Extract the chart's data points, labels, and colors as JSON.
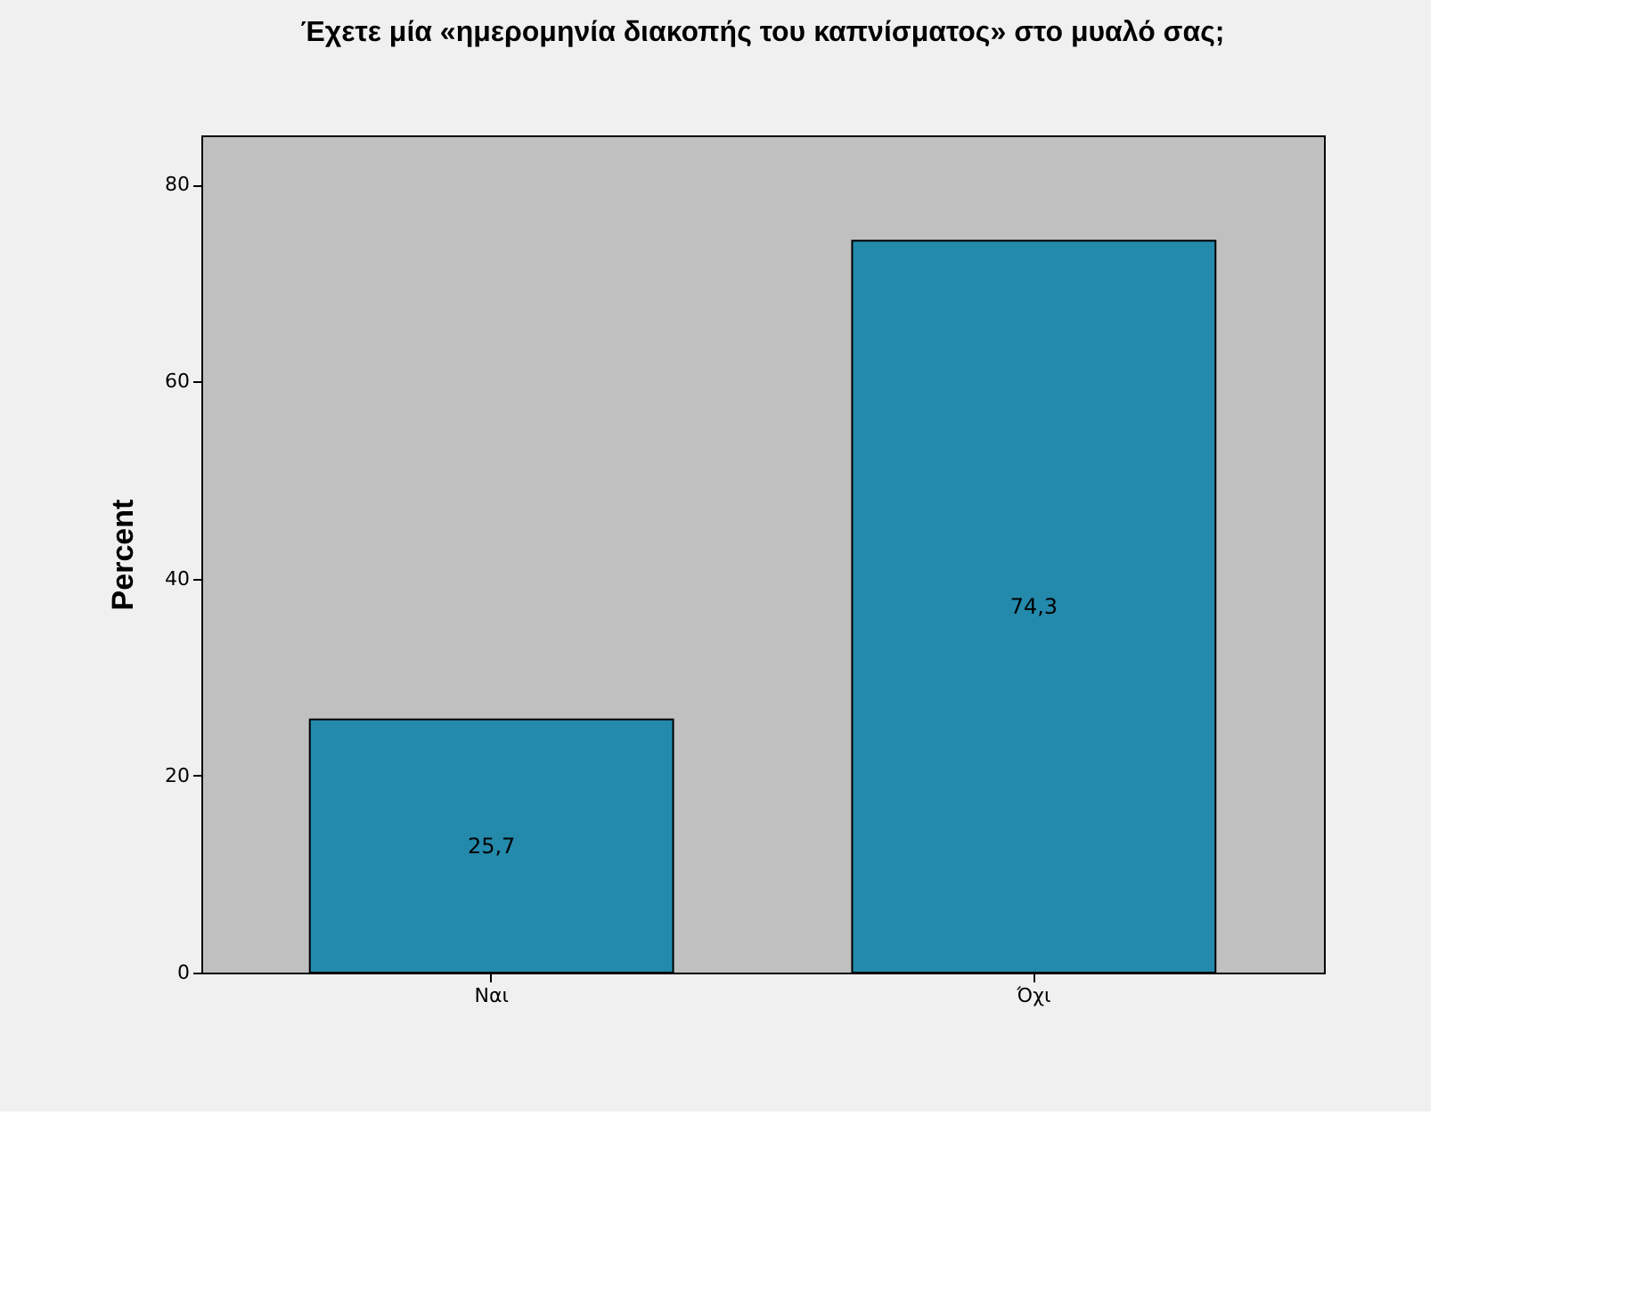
{
  "chart_data": {
    "type": "bar",
    "title": "Έχετε μία «ημερομηνία διακοπής του καπνίσματος» στο μυαλό σας;",
    "ylabel": "Percent",
    "categories": [
      "Ναι",
      "Όχι"
    ],
    "values": [
      25.7,
      74.3
    ],
    "value_labels": [
      "25,7",
      "74,3"
    ],
    "color": "#248aac",
    "ylim": [
      0,
      85
    ],
    "yticks": [
      0,
      20,
      40,
      60,
      80
    ],
    "grid": false
  }
}
